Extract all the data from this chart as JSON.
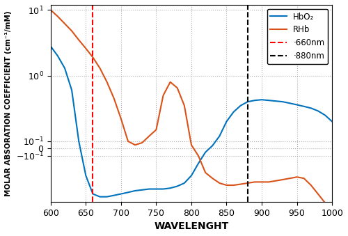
{
  "xlabel": "WAVELENGHT",
  "ylabel": "MOLAR ABSORATION COEFFICIENT (cm⁻¹/mM)",
  "xmin": 600,
  "xmax": 1000,
  "vline_red": 660,
  "vline_black": 880,
  "hbo2_color": "#0072BD",
  "rhb_color": "#D95319",
  "legend_labels": [
    "HbO₂",
    "RHb",
    "·660nm",
    "·880nm"
  ],
  "symlog_linthresh": 0.1,
  "hbo2_wavelengths": [
    600,
    610,
    620,
    630,
    640,
    650,
    660,
    670,
    680,
    690,
    700,
    710,
    720,
    730,
    740,
    750,
    760,
    770,
    780,
    790,
    800,
    810,
    820,
    830,
    840,
    850,
    860,
    870,
    880,
    890,
    900,
    910,
    920,
    930,
    940,
    950,
    960,
    970,
    980,
    990,
    1000
  ],
  "hbo2_values": [
    2.8,
    2.0,
    1.3,
    0.6,
    0.1,
    -0.2,
    -0.38,
    -0.42,
    -0.42,
    -0.4,
    -0.38,
    -0.36,
    -0.34,
    -0.33,
    -0.32,
    -0.32,
    -0.32,
    -0.31,
    -0.29,
    -0.26,
    -0.2,
    -0.13,
    -0.05,
    0.04,
    0.12,
    0.2,
    0.28,
    0.35,
    0.4,
    0.42,
    0.43,
    0.42,
    0.41,
    0.4,
    0.38,
    0.36,
    0.34,
    0.32,
    0.29,
    0.25,
    0.2
  ],
  "rhb_wavelengths": [
    600,
    610,
    620,
    630,
    640,
    650,
    660,
    670,
    680,
    690,
    700,
    710,
    720,
    730,
    740,
    750,
    760,
    770,
    780,
    790,
    800,
    810,
    820,
    830,
    840,
    850,
    860,
    870,
    880,
    890,
    900,
    910,
    920,
    930,
    940,
    950,
    960,
    970,
    980,
    990,
    1000
  ],
  "rhb_values": [
    10,
    8.0,
    6.2,
    4.8,
    3.5,
    2.6,
    1.9,
    1.3,
    0.8,
    0.45,
    0.22,
    0.1,
    0.05,
    0.08,
    0.12,
    0.15,
    0.5,
    0.8,
    0.65,
    0.35,
    0.05,
    -0.1,
    -0.18,
    -0.22,
    -0.26,
    -0.28,
    -0.28,
    -0.27,
    -0.26,
    -0.25,
    -0.25,
    -0.25,
    -0.24,
    -0.23,
    -0.22,
    -0.21,
    -0.22,
    -0.28,
    -0.38,
    -0.52,
    -0.65
  ]
}
